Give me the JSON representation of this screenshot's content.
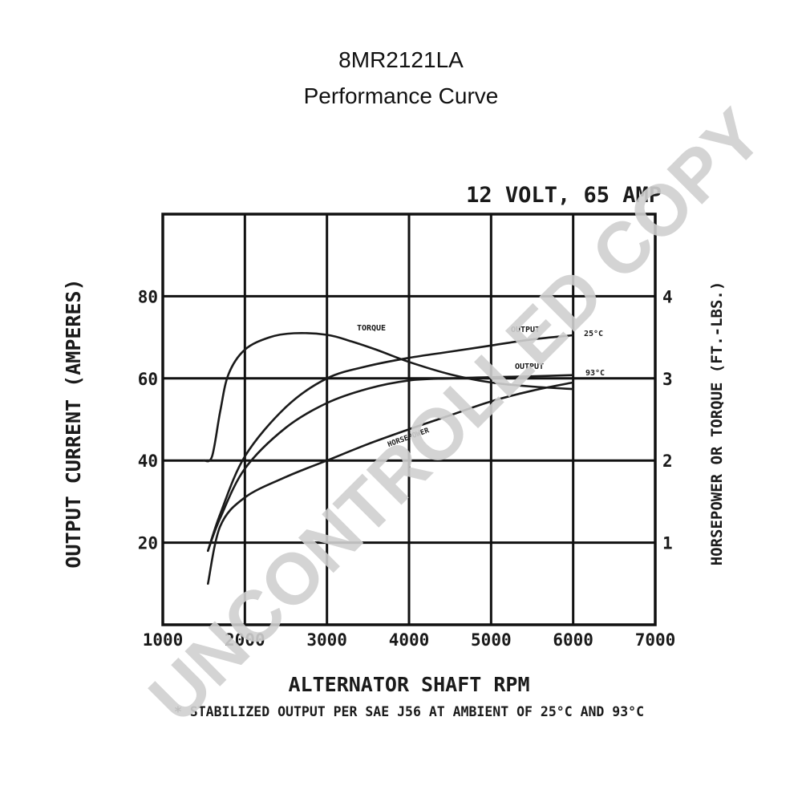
{
  "header": {
    "title": "8MR2121LA",
    "subtitle": "Performance Curve"
  },
  "watermark": {
    "text": "UNCONTROLLED COPY",
    "color": "#cfcfcf"
  },
  "chart_data": {
    "type": "line",
    "title": "12 VOLT, 65 AMP",
    "xlabel": "ALTERNATOR SHAFT RPM",
    "ylabel": "OUTPUT CURRENT (AMPERES)",
    "y2label": "HORSEPOWER OR TORQUE (FT.-LBS.)",
    "footnote": "* STABILIZED OUTPUT PER SAE J56 AT AMBIENT OF 25°C AND 93°C",
    "xlim": [
      1000,
      7000
    ],
    "ylim": [
      0,
      100
    ],
    "y2lim": [
      0,
      5
    ],
    "xticks": [
      1000,
      2000,
      3000,
      4000,
      5000,
      6000,
      7000
    ],
    "yticks": [
      20,
      40,
      60,
      80
    ],
    "y2ticks": [
      1,
      2,
      3,
      4
    ],
    "grid": true,
    "series": [
      {
        "name": "TORQUE",
        "axis": "right",
        "x": [
          1500,
          1600,
          1700,
          1800,
          2000,
          2300,
          2600,
          3000,
          3300,
          3600,
          4000,
          4500,
          5000,
          5500,
          6000
        ],
        "y": [
          2.0,
          2.05,
          2.6,
          3.05,
          3.35,
          3.5,
          3.55,
          3.53,
          3.45,
          3.35,
          3.2,
          3.05,
          2.95,
          2.9,
          2.87
        ]
      },
      {
        "name": "OUTPUT 25°C",
        "axis": "left",
        "x": [
          1550,
          1700,
          2000,
          2500,
          3000,
          3500,
          4000,
          4500,
          5000,
          5500,
          6000
        ],
        "y": [
          18,
          27,
          41,
          53,
          60,
          63,
          65,
          66.5,
          68,
          69.5,
          70.5
        ]
      },
      {
        "name": "OUTPUT 93°C",
        "axis": "left",
        "x": [
          1550,
          1700,
          2000,
          2500,
          3000,
          3500,
          4000,
          4500,
          5000,
          5500,
          6000
        ],
        "y": [
          18,
          26,
          38,
          48,
          54,
          57.5,
          59.5,
          60,
          60.3,
          60.5,
          60.8
        ]
      },
      {
        "name": "HORSEPOWER",
        "axis": "right",
        "x": [
          1550,
          1700,
          2000,
          2500,
          3000,
          3500,
          4000,
          4500,
          5000,
          5500,
          6000
        ],
        "y": [
          0.5,
          1.2,
          1.55,
          1.8,
          2.0,
          2.2,
          2.38,
          2.55,
          2.72,
          2.85,
          2.95
        ]
      }
    ],
    "annotations": [
      "TORQUE",
      "OUTPUT",
      "25°C",
      "OUTPUT",
      "93°C",
      "HORSEPOWER"
    ]
  }
}
